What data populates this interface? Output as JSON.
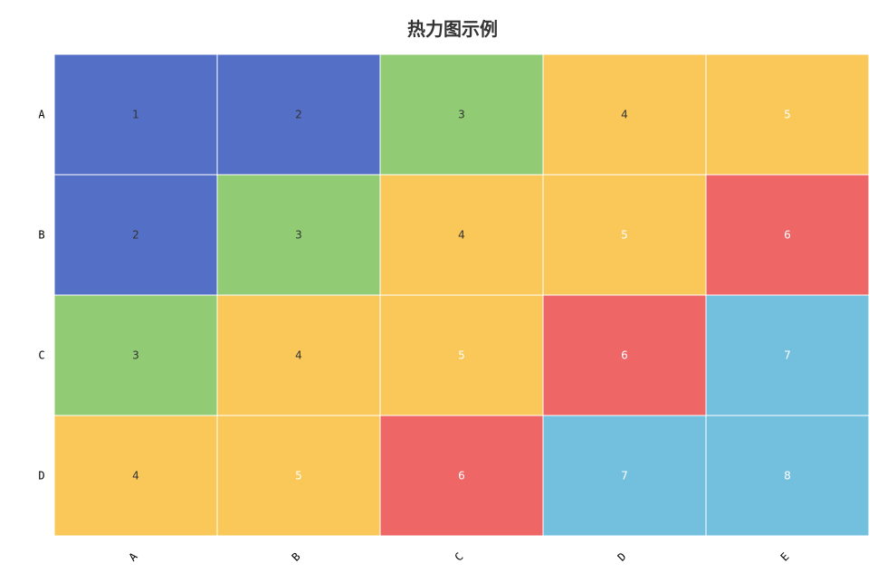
{
  "chart_data": {
    "type": "heatmap",
    "title": "热力图示例",
    "x_categories": [
      "A",
      "B",
      "C",
      "D",
      "E"
    ],
    "y_categories": [
      "A",
      "B",
      "C",
      "D"
    ],
    "values": [
      [
        1,
        2,
        3,
        4,
        5
      ],
      [
        2,
        3,
        4,
        5,
        6
      ],
      [
        3,
        4,
        5,
        6,
        7
      ],
      [
        4,
        5,
        6,
        7,
        8
      ]
    ],
    "color_pieces": [
      {
        "min": 1,
        "max": 2,
        "color": "#5470c6"
      },
      {
        "min": 3,
        "max": 3,
        "color": "#91cc75"
      },
      {
        "min": 4,
        "max": 5,
        "color": "#fac858"
      },
      {
        "min": 6,
        "max": 6,
        "color": "#ee6666"
      },
      {
        "min": 7,
        "max": 8,
        "color": "#73c0de"
      }
    ],
    "dark_label_color": "#333333",
    "light_label_color": "#ffffff",
    "grid": false,
    "legend": "none"
  }
}
